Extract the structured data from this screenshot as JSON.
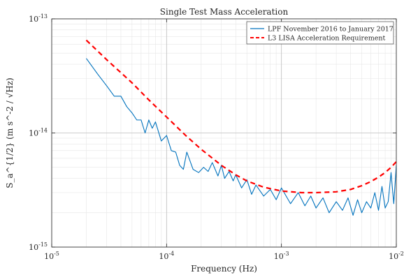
{
  "chart_data": {
    "type": "line",
    "title": "Single Test Mass Acceleration",
    "xlabel": "Frequency (Hz)",
    "ylabel": "S_a^{1/2} (m s^-2 / √Hz)",
    "x_scale": "log",
    "y_scale": "log",
    "xlim": [
      1e-05,
      0.01
    ],
    "ylim": [
      1e-15,
      1e-13
    ],
    "xticks": [
      1e-05,
      0.0001,
      0.001,
      0.01
    ],
    "yticks": [
      1e-15,
      1e-14,
      1e-13
    ],
    "xtick_labels": [
      {
        "base": "10",
        "exp": "-5"
      },
      {
        "base": "10",
        "exp": "-4"
      },
      {
        "base": "10",
        "exp": "-3"
      },
      {
        "base": "10",
        "exp": "-2"
      }
    ],
    "ytick_labels": [
      {
        "base": "10",
        "exp": "-15"
      },
      {
        "base": "10",
        "exp": "-14"
      },
      {
        "base": "10",
        "exp": "-13"
      }
    ],
    "grid": true,
    "legend_position": "top-right",
    "series": [
      {
        "name": "LPF November 2016 to January 2017",
        "color": "#0072bd",
        "style": "solid",
        "x": [
          2e-05,
          2.5e-05,
          3e-05,
          3.5e-05,
          4e-05,
          4.5e-05,
          5e-05,
          5.5e-05,
          6e-05,
          6.5e-05,
          7e-05,
          7.5e-05,
          8e-05,
          9e-05,
          0.0001,
          0.00011,
          0.00012,
          0.00013,
          0.00014,
          0.00015,
          0.00017,
          0.00019,
          0.00021,
          0.00023,
          0.00025,
          0.00028,
          0.0003,
          0.00032,
          0.00035,
          0.00038,
          0.0004,
          0.00045,
          0.0005,
          0.00055,
          0.0006,
          0.0007,
          0.0008,
          0.0009,
          0.001,
          0.0012,
          0.0014,
          0.0016,
          0.0018,
          0.002,
          0.0023,
          0.0026,
          0.003,
          0.0034,
          0.0038,
          0.0042,
          0.0046,
          0.005,
          0.0055,
          0.006,
          0.0065,
          0.007,
          0.0075,
          0.008,
          0.0085,
          0.009,
          0.0095,
          0.01
        ],
        "y": [
          4.5e-14,
          3.3e-14,
          2.6e-14,
          2.1e-14,
          2.1e-14,
          1.7e-14,
          1.5e-14,
          1.3e-14,
          1.3e-14,
          1e-14,
          1.3e-14,
          1.1e-14,
          1.25e-14,
          8.5e-15,
          9.5e-15,
          7e-15,
          6.8e-15,
          5.2e-15,
          4.8e-15,
          6.8e-15,
          4.8e-15,
          4.5e-15,
          5e-15,
          4.6e-15,
          5.5e-15,
          4.2e-15,
          5.2e-15,
          4e-15,
          4.6e-15,
          3.8e-15,
          4.3e-15,
          3.3e-15,
          3.9e-15,
          2.9e-15,
          3.5e-15,
          2.8e-15,
          3.2e-15,
          2.6e-15,
          3.3e-15,
          2.4e-15,
          3e-15,
          2.3e-15,
          2.8e-15,
          2.2e-15,
          2.7e-15,
          2e-15,
          2.5e-15,
          2.1e-15,
          2.7e-15,
          1.9e-15,
          2.6e-15,
          2e-15,
          2.5e-15,
          2.2e-15,
          3e-15,
          2.1e-15,
          3.4e-15,
          2.2e-15,
          2.5e-15,
          4.5e-15,
          2.4e-15,
          5.2e-15
        ]
      },
      {
        "name": "L3 LISA Acceleration Requirement",
        "color": "#ff0000",
        "style": "dashed",
        "x": [
          2e-05,
          3e-05,
          5e-05,
          7e-05,
          0.0001,
          0.00015,
          0.0002,
          0.0003,
          0.0004,
          0.0005,
          0.0007,
          0.001,
          0.0015,
          0.002,
          0.003,
          0.004,
          0.005,
          0.006,
          0.007,
          0.008,
          0.009,
          0.01
        ],
        "y": [
          6.5e-14,
          4.4e-14,
          2.75e-14,
          1.95e-14,
          1.38e-14,
          9.3e-15,
          7.2e-15,
          5.2e-15,
          4.3e-15,
          3.8e-15,
          3.35e-15,
          3.1e-15,
          3e-15,
          3e-15,
          3.05e-15,
          3.2e-15,
          3.45e-15,
          3.75e-15,
          4.1e-15,
          4.5e-15,
          5e-15,
          5.6e-15
        ]
      }
    ]
  }
}
